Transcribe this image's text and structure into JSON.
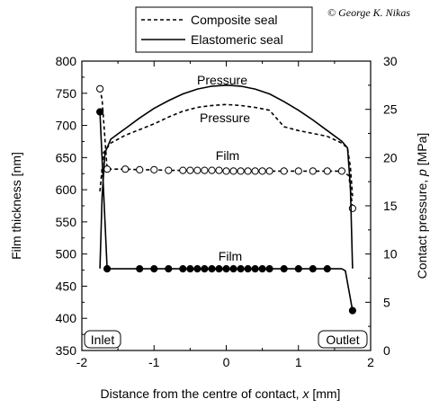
{
  "copyright": "© George K. Nikas",
  "chart_data": {
    "type": "line",
    "xlabel_prefix": "Distance from the centre of contact, ",
    "xlabel_var": "x",
    "xlabel_unit": " [mm]",
    "ylabel_left": "Film thickness [nm]",
    "ylabel_right_prefix": "Contact pressure, ",
    "ylabel_right_var": "p",
    "ylabel_right_unit": " [MPa]",
    "xlim": [
      -2,
      2
    ],
    "ylim_left": [
      350,
      800
    ],
    "ylim_right": [
      0,
      30
    ],
    "xticks": [
      -2,
      -1,
      0,
      1,
      2
    ],
    "yticks_left": [
      350,
      400,
      450,
      500,
      550,
      600,
      650,
      700,
      750,
      800
    ],
    "yticks_right": [
      0,
      5,
      10,
      15,
      20,
      25,
      30
    ],
    "legend_position": "top-center",
    "legend": [
      {
        "label": "Composite seal",
        "style": "dashed"
      },
      {
        "label": "Elastomeric seal",
        "style": "solid"
      }
    ],
    "annotations": {
      "pressure_upper": "Pressure",
      "pressure_lower": "Pressure",
      "film_upper": "Film",
      "film_lower": "Film",
      "inlet": "Inlet",
      "outlet": "Outlet"
    },
    "series": [
      {
        "name": "Composite seal",
        "quantity": "film",
        "axis": "left",
        "style": "dashed",
        "markers": "open-circle",
        "x": [
          -1.75,
          -1.72,
          -1.65,
          -1.4,
          -1.2,
          -1.0,
          -0.8,
          -0.6,
          -0.5,
          -0.4,
          -0.3,
          -0.2,
          -0.1,
          0.0,
          0.1,
          0.2,
          0.3,
          0.4,
          0.5,
          0.6,
          0.8,
          1.0,
          1.2,
          1.4,
          1.6,
          1.7,
          1.75
        ],
        "y": [
          757,
          740,
          632,
          632,
          631,
          631,
          630,
          630,
          630,
          630,
          630,
          630,
          630,
          629,
          629,
          629,
          629,
          629,
          629,
          629,
          629,
          629,
          629,
          629,
          629,
          622,
          571
        ],
        "marker_index": [
          0,
          2,
          3,
          4,
          5,
          6,
          7,
          8,
          9,
          10,
          11,
          12,
          13,
          14,
          15,
          16,
          17,
          18,
          19,
          20,
          21,
          22,
          23,
          24,
          26
        ]
      },
      {
        "name": "Elastomeric seal",
        "quantity": "film",
        "axis": "left",
        "style": "solid",
        "markers": "filled-circle",
        "x": [
          -1.75,
          -1.65,
          -1.5,
          -1.2,
          -1.0,
          -0.8,
          -0.6,
          -0.5,
          -0.4,
          -0.3,
          -0.2,
          -0.1,
          0.0,
          0.1,
          0.2,
          0.3,
          0.4,
          0.5,
          0.6,
          0.8,
          1.0,
          1.2,
          1.4,
          1.6,
          1.65,
          1.75
        ],
        "y": [
          721,
          477,
          477,
          477,
          477,
          477,
          477,
          477,
          477,
          477,
          477,
          477,
          477,
          477,
          477,
          477,
          477,
          477,
          477,
          477,
          477,
          477,
          477,
          477,
          474,
          412
        ],
        "marker_index": [
          0,
          1,
          3,
          4,
          5,
          6,
          7,
          8,
          9,
          10,
          11,
          12,
          13,
          14,
          15,
          16,
          17,
          18,
          19,
          20,
          21,
          22,
          25
        ]
      },
      {
        "name": "Composite seal",
        "quantity": "pressure",
        "axis": "right",
        "style": "dashed",
        "x": [
          -1.75,
          -1.7,
          -1.6,
          -1.4,
          -1.2,
          -1.0,
          -0.8,
          -0.6,
          -0.4,
          -0.2,
          0.0,
          0.2,
          0.4,
          0.6,
          0.8,
          1.0,
          1.2,
          1.4,
          1.6,
          1.68,
          1.72,
          1.75
        ],
        "y": [
          16.5,
          20.5,
          21.5,
          22.3,
          22.9,
          23.5,
          24.2,
          24.8,
          25.2,
          25.4,
          25.5,
          25.4,
          25.2,
          24.9,
          23.2,
          22.8,
          22.5,
          22.2,
          21.5,
          21.0,
          19.0,
          16.0
        ]
      },
      {
        "name": "Elastomeric seal",
        "quantity": "pressure",
        "axis": "right",
        "style": "solid",
        "x": [
          -1.75,
          -1.72,
          -1.68,
          -1.6,
          -1.4,
          -1.2,
          -1.0,
          -0.8,
          -0.6,
          -0.4,
          -0.2,
          0.0,
          0.2,
          0.4,
          0.6,
          0.8,
          1.0,
          1.2,
          1.4,
          1.6,
          1.68,
          1.72,
          1.75
        ],
        "y": [
          8.5,
          16.0,
          20.5,
          21.9,
          23.0,
          24.1,
          25.1,
          25.9,
          26.6,
          27.1,
          27.4,
          27.5,
          27.4,
          27.1,
          26.6,
          25.8,
          24.9,
          23.9,
          22.8,
          21.7,
          21.0,
          17.0,
          8.5
        ]
      }
    ]
  }
}
